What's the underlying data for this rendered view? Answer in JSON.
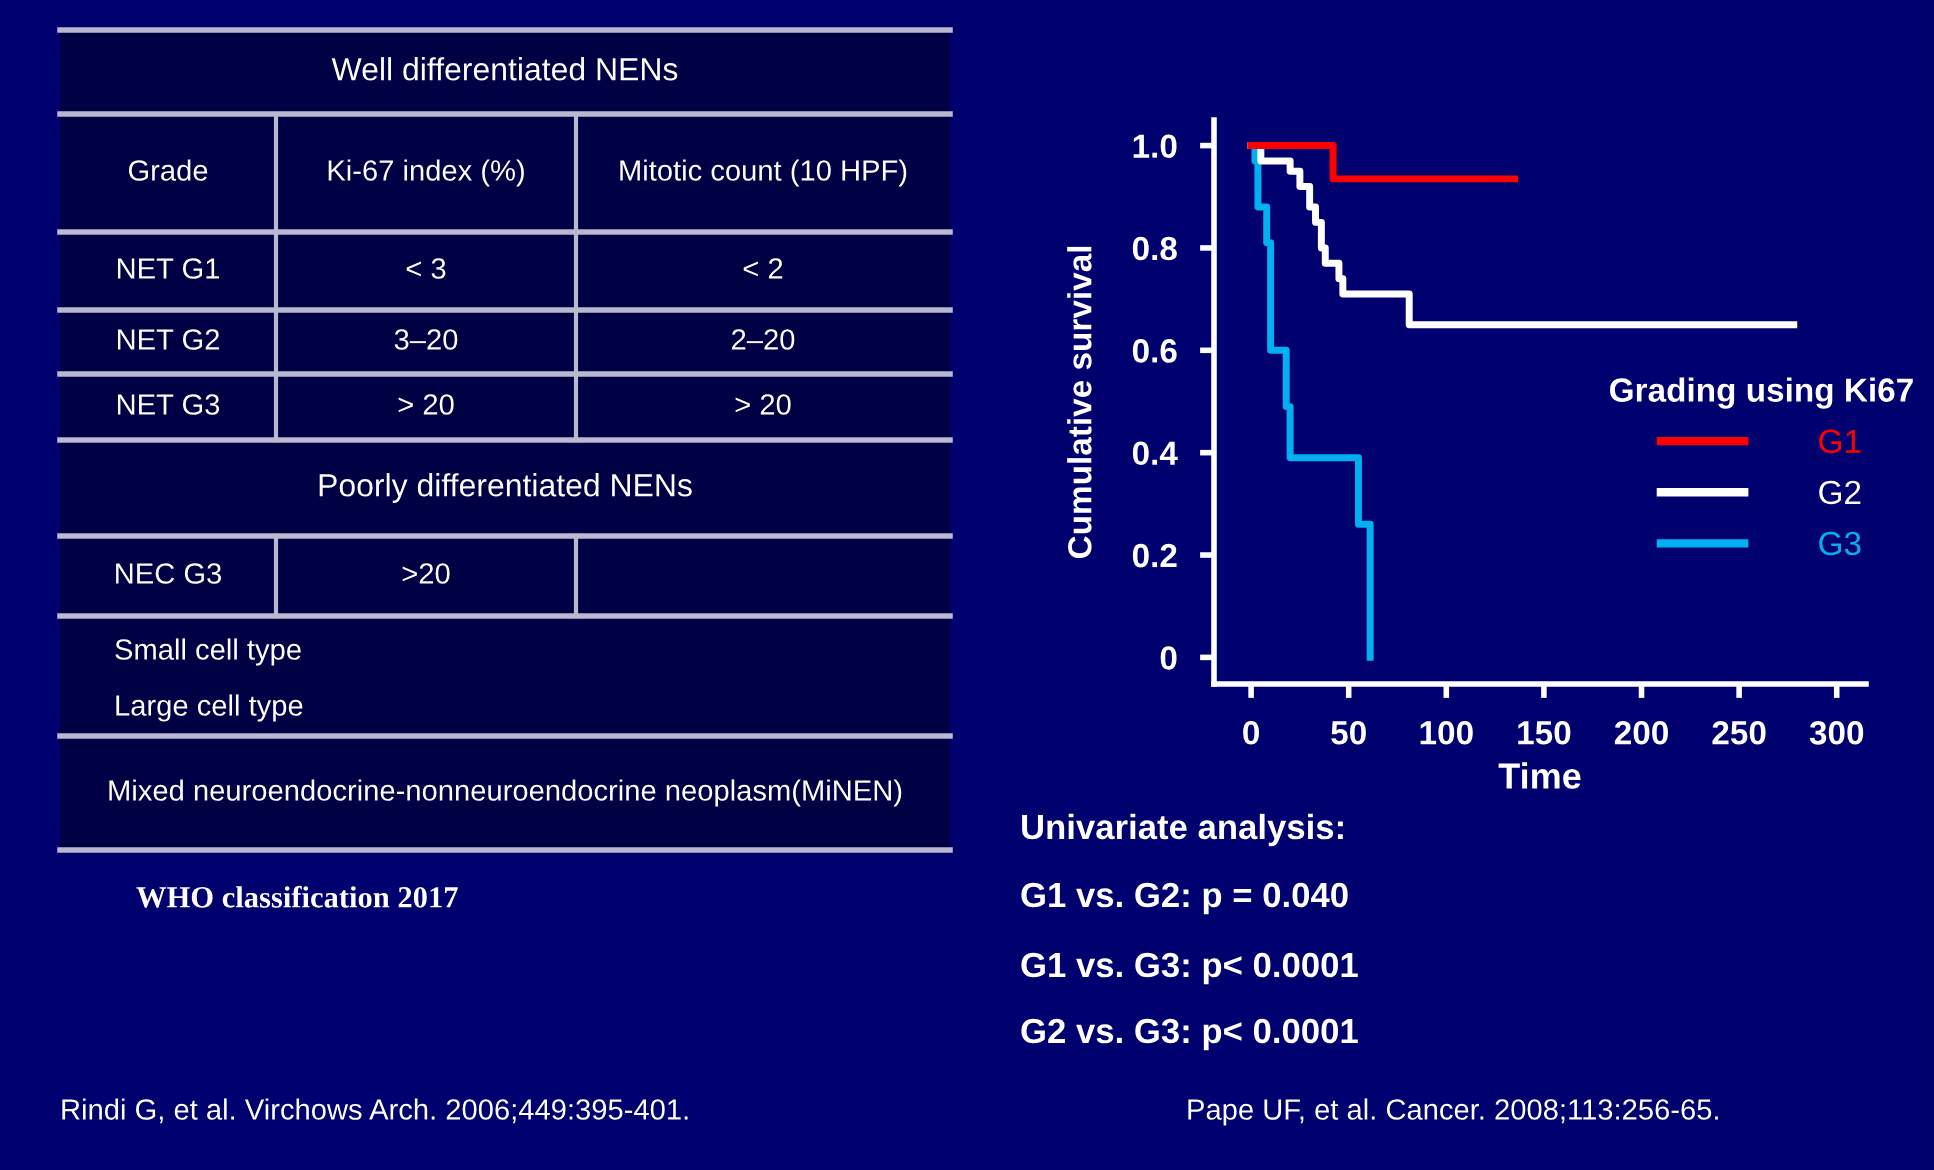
{
  "chart_data": [
    {
      "type": "other",
      "annotations": [
        "Well differentiated NENs",
        "Grade",
        "Ki-67 index (%)",
        "Mitotic count (10 HPF)",
        "NET G1",
        "< 3",
        "< 2",
        "NET G2",
        "3–20",
        "2–20",
        "NET G3",
        "> 20",
        "> 20",
        "Poorly differentiated NENs",
        "NEC G3",
        ">20",
        "Small cell type",
        "Large cell type",
        "Mixed neuroendocrine-nonneuroendocrine neoplasm(MiNEN)",
        "WHO classification 2017",
        "Rindi G, et al. Virchows Arch. 2006;449:395-401."
      ]
    },
    {
      "type": "step",
      "xlabel": "Time",
      "ylabel": "Cumulative survival",
      "legend_title": "Grading using Ki67",
      "legend": "right",
      "xlim": [
        -19,
        315
      ],
      "ylim": [
        -0.052,
        1.05
      ],
      "xticks": [
        0,
        50,
        100,
        150,
        200,
        250,
        300
      ],
      "yticks": [
        0,
        0.2,
        0.4,
        0.6,
        0.8,
        {
          "value": 1,
          "label": "1.0"
        }
      ],
      "series": [
        {
          "name": "G1",
          "color": "#ff0000",
          "x": [
            0,
            42,
            135
          ],
          "values": [
            1,
            0.935,
            0.935
          ]
        },
        {
          "name": "G2",
          "color": "#ffffff",
          "x": [
            0,
            5,
            20,
            25,
            30,
            33,
            36,
            38,
            45,
            47,
            81,
            278
          ],
          "values": [
            1,
            0.97,
            0.95,
            0.92,
            0.88,
            0.85,
            0.8,
            0.77,
            0.74,
            0.71,
            0.65,
            0.65
          ]
        },
        {
          "name": "G3",
          "color": "#00b0f0",
          "x": [
            0,
            2,
            3.5,
            8,
            10,
            18,
            20,
            55,
            61
          ],
          "values": [
            1,
            0.97,
            0.88,
            0.81,
            0.6,
            0.49,
            0.39,
            0.26,
            0
          ]
        }
      ],
      "annotations": [
        "Univariate analysis:",
        "G1 vs. G2: p = 0.040",
        "G1 vs. G3: p< 0.0001",
        "G2 vs. G3: p< 0.0001",
        "Pape UF, et al. Cancer. 2008;113:256-65."
      ]
    }
  ]
}
